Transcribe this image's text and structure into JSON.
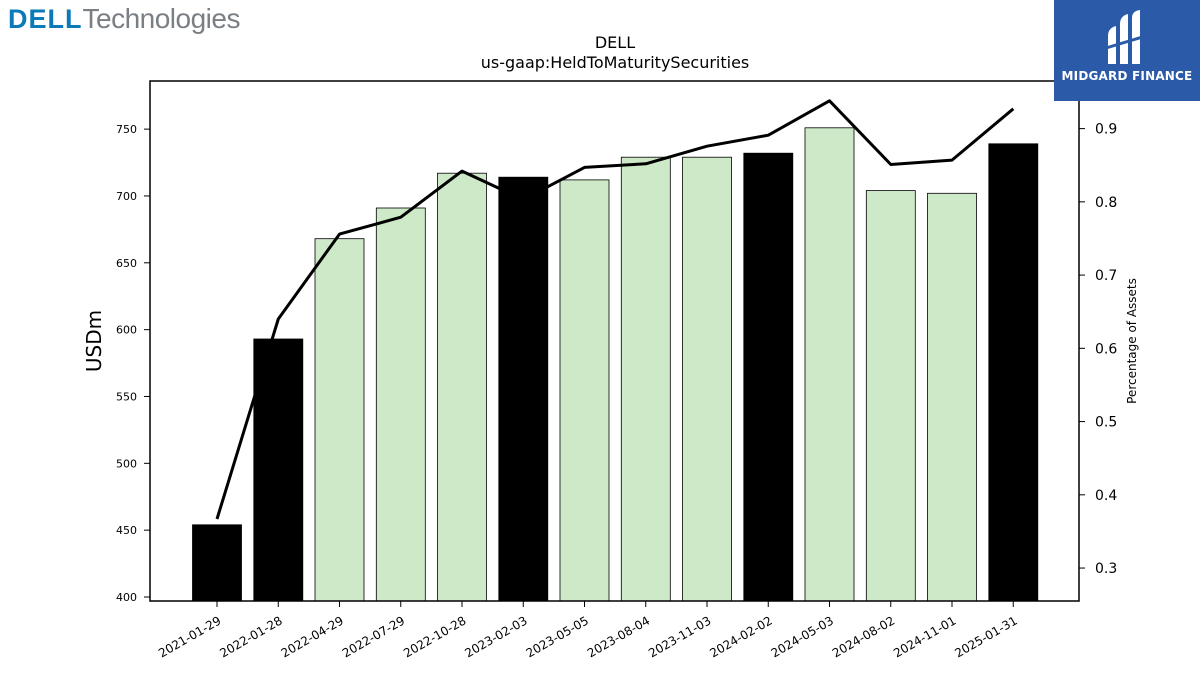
{
  "branding": {
    "left_logo_brand": "DELL",
    "left_logo_suffix": "Technologies",
    "right_logo_text": "MIDGARD FINANCE",
    "right_logo_color": "#2b5ba8"
  },
  "chart_data": {
    "type": "bar",
    "title": "DELL",
    "subtitle": "us-gaap:HeldToMaturitySecurities",
    "ylabel": "USDm",
    "y2label": "Percentage of Assets",
    "ylim": [
      397,
      786
    ],
    "y2lim": [
      0.255,
      0.965
    ],
    "yticks": [
      400,
      450,
      500,
      550,
      600,
      650,
      700,
      750
    ],
    "y2ticks": [
      0.3,
      0.4,
      0.5,
      0.6,
      0.7,
      0.8,
      0.9
    ],
    "categories": [
      "2021-01-29",
      "2022-01-28",
      "2022-04-29",
      "2022-07-29",
      "2022-10-28",
      "2023-02-03",
      "2023-05-05",
      "2023-08-04",
      "2023-11-03",
      "2024-02-02",
      "2024-05-03",
      "2024-08-02",
      "2024-11-01",
      "2025-01-31"
    ],
    "series": [
      {
        "values": [
          454,
          593,
          668,
          691,
          717,
          714,
          712,
          729,
          729,
          732,
          751,
          704,
          702,
          739
        ],
        "colors": [
          "#000000",
          "#000000",
          "#cde9c7",
          "#cde9c7",
          "#cde9c7",
          "#000000",
          "#cde9c7",
          "#cde9c7",
          "#cde9c7",
          "#000000",
          "#cde9c7",
          "#cde9c7",
          "#cde9c7",
          "#000000"
        ]
      },
      {
        "axis": "right",
        "type": "line",
        "color": "#000000",
        "values": [
          0.367,
          0.64,
          0.756,
          0.779,
          0.842,
          0.803,
          0.847,
          0.852,
          0.876,
          0.891,
          0.938,
          0.851,
          0.857,
          0.927
        ]
      }
    ],
    "grid": false,
    "legend": "none"
  }
}
